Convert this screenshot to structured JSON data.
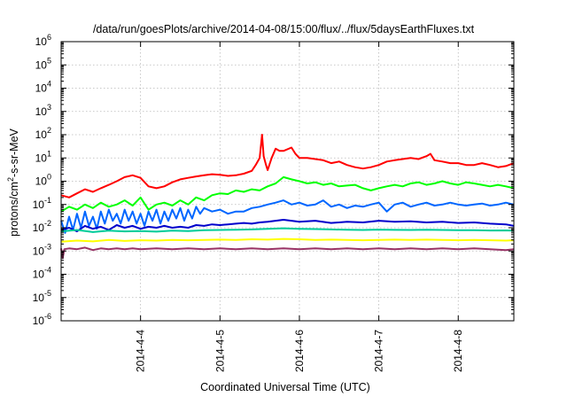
{
  "chart_data": {
    "type": "line",
    "title": "/data/run/goesPlots/archive/2014-04-08/15:00/flux/../flux/5daysEarthFluxes.txt",
    "xlabel": "Coordinated Universal Time (UTC)",
    "ylabel": "protons/cm²-s-sr-MeV",
    "ylabel_base": "protons/cm",
    "ylabel_sup": "2",
    "ylabel_rest": "-s-sr-MeV",
    "yscale": "log",
    "ylim_exp": [
      -6,
      6
    ],
    "y_tick_base": "10",
    "y_tick_exponents": [
      "6",
      "5",
      "4",
      "3",
      "2",
      "1",
      "0",
      "-1",
      "-2",
      "-3",
      "-4",
      "-5",
      "-6"
    ],
    "xlim_days": [
      3.0,
      8.7
    ],
    "x_tick_days": [
      4,
      5,
      6,
      7,
      8
    ],
    "x_tick_labels": [
      "2014-4-4",
      "2014-4-5",
      "2014-4-6",
      "2014-4-7",
      "2014-4-8"
    ],
    "grid": true,
    "series": [
      {
        "color": "#ff0000",
        "x": [
          3.0,
          3.1,
          3.2,
          3.3,
          3.4,
          3.5,
          3.6,
          3.7,
          3.8,
          3.9,
          4.0,
          4.1,
          4.2,
          4.3,
          4.4,
          4.5,
          4.6,
          4.7,
          4.8,
          4.9,
          5.0,
          5.1,
          5.2,
          5.3,
          5.4,
          5.45,
          5.5,
          5.53,
          5.55,
          5.58,
          5.6,
          5.65,
          5.7,
          5.75,
          5.8,
          5.9,
          5.95,
          6.0,
          6.1,
          6.2,
          6.3,
          6.4,
          6.5,
          6.6,
          6.7,
          6.8,
          6.9,
          7.0,
          7.1,
          7.2,
          7.3,
          7.4,
          7.5,
          7.6,
          7.65,
          7.7,
          7.8,
          7.9,
          8.0,
          8.1,
          8.2,
          8.3,
          8.4,
          8.5,
          8.6,
          8.7
        ],
        "y": [
          0.25,
          0.2,
          0.3,
          0.45,
          0.35,
          0.5,
          0.7,
          1.0,
          1.5,
          1.8,
          1.4,
          0.6,
          0.5,
          0.6,
          0.9,
          1.2,
          1.4,
          1.6,
          1.8,
          2.0,
          1.9,
          1.7,
          1.8,
          2.1,
          2.8,
          5,
          10,
          100,
          12,
          5,
          3,
          10,
          25,
          20,
          20,
          28,
          15,
          10,
          10,
          9,
          8,
          6,
          7,
          5,
          4,
          3.5,
          4,
          5,
          7,
          8,
          9,
          10,
          9,
          12,
          15,
          8,
          7,
          6,
          6,
          5,
          5,
          6,
          5,
          4,
          4.5,
          6
        ]
      },
      {
        "color": "#00ff00",
        "x": [
          3.0,
          3.1,
          3.2,
          3.3,
          3.4,
          3.5,
          3.6,
          3.7,
          3.8,
          3.9,
          4.0,
          4.1,
          4.2,
          4.3,
          4.4,
          4.5,
          4.6,
          4.7,
          4.8,
          4.9,
          5.0,
          5.1,
          5.2,
          5.3,
          5.4,
          5.5,
          5.6,
          5.7,
          5.8,
          5.9,
          6.0,
          6.1,
          6.2,
          6.3,
          6.4,
          6.5,
          6.6,
          6.7,
          6.8,
          6.9,
          7.0,
          7.1,
          7.2,
          7.3,
          7.4,
          7.5,
          7.6,
          7.7,
          7.8,
          7.9,
          8.0,
          8.1,
          8.2,
          8.3,
          8.4,
          8.5,
          8.6,
          8.7
        ],
        "y": [
          0.05,
          0.08,
          0.06,
          0.1,
          0.07,
          0.12,
          0.08,
          0.1,
          0.15,
          0.09,
          0.2,
          0.06,
          0.1,
          0.12,
          0.09,
          0.15,
          0.1,
          0.2,
          0.15,
          0.25,
          0.3,
          0.28,
          0.4,
          0.35,
          0.45,
          0.4,
          0.6,
          0.8,
          1.5,
          1.2,
          1.0,
          0.8,
          0.9,
          0.7,
          0.8,
          0.6,
          0.65,
          0.7,
          0.5,
          0.4,
          0.5,
          0.6,
          0.7,
          0.6,
          0.8,
          0.9,
          0.7,
          0.8,
          1.0,
          0.8,
          0.7,
          0.9,
          0.8,
          0.7,
          0.6,
          0.7,
          0.6,
          0.5
        ]
      },
      {
        "color": "#0066ff",
        "x": [
          3.0,
          3.05,
          3.1,
          3.15,
          3.2,
          3.25,
          3.3,
          3.35,
          3.4,
          3.45,
          3.5,
          3.55,
          3.6,
          3.65,
          3.7,
          3.75,
          3.8,
          3.85,
          3.9,
          3.95,
          4.0,
          4.05,
          4.1,
          4.15,
          4.2,
          4.25,
          4.3,
          4.35,
          4.4,
          4.45,
          4.5,
          4.55,
          4.6,
          4.65,
          4.7,
          4.75,
          4.8,
          4.9,
          5.0,
          5.1,
          5.2,
          5.3,
          5.4,
          5.5,
          5.6,
          5.7,
          5.8,
          5.9,
          6.0,
          6.1,
          6.2,
          6.3,
          6.4,
          6.5,
          6.6,
          6.7,
          6.8,
          6.9,
          7.0,
          7.1,
          7.2,
          7.3,
          7.4,
          7.5,
          7.6,
          7.7,
          7.8,
          7.9,
          8.0,
          8.1,
          8.2,
          8.3,
          8.4,
          8.5,
          8.6,
          8.7
        ],
        "y": [
          0.02,
          0.006,
          0.03,
          0.008,
          0.04,
          0.01,
          0.05,
          0.012,
          0.03,
          0.009,
          0.05,
          0.015,
          0.06,
          0.02,
          0.04,
          0.015,
          0.06,
          0.02,
          0.05,
          0.015,
          0.04,
          0.012,
          0.05,
          0.02,
          0.06,
          0.015,
          0.05,
          0.02,
          0.06,
          0.025,
          0.07,
          0.02,
          0.06,
          0.025,
          0.08,
          0.04,
          0.07,
          0.05,
          0.06,
          0.04,
          0.05,
          0.05,
          0.07,
          0.08,
          0.1,
          0.12,
          0.15,
          0.1,
          0.12,
          0.09,
          0.1,
          0.15,
          0.08,
          0.1,
          0.07,
          0.09,
          0.08,
          0.1,
          0.12,
          0.05,
          0.1,
          0.12,
          0.08,
          0.1,
          0.12,
          0.09,
          0.1,
          0.12,
          0.1,
          0.09,
          0.1,
          0.11,
          0.09,
          0.1,
          0.12,
          0.1
        ]
      },
      {
        "color": "#0000cc",
        "x": [
          3.0,
          3.1,
          3.2,
          3.3,
          3.4,
          3.5,
          3.6,
          3.7,
          3.8,
          3.9,
          4.0,
          4.1,
          4.2,
          4.3,
          4.4,
          4.5,
          4.6,
          4.7,
          4.8,
          4.9,
          5.0,
          5.1,
          5.2,
          5.3,
          5.4,
          5.5,
          5.6,
          5.7,
          5.8,
          5.9,
          6.0,
          6.2,
          6.4,
          6.6,
          6.8,
          7.0,
          7.2,
          7.4,
          7.6,
          7.8,
          8.0,
          8.2,
          8.4,
          8.6,
          8.7
        ],
        "y": [
          0.008,
          0.01,
          0.007,
          0.012,
          0.009,
          0.011,
          0.008,
          0.013,
          0.01,
          0.012,
          0.009,
          0.011,
          0.01,
          0.012,
          0.01,
          0.011,
          0.01,
          0.013,
          0.012,
          0.014,
          0.013,
          0.014,
          0.015,
          0.016,
          0.015,
          0.017,
          0.018,
          0.02,
          0.022,
          0.02,
          0.018,
          0.02,
          0.016,
          0.018,
          0.017,
          0.02,
          0.018,
          0.019,
          0.017,
          0.018,
          0.016,
          0.017,
          0.015,
          0.014,
          0.012
        ]
      },
      {
        "color": "#00cc99",
        "x": [
          3.0,
          3.2,
          3.4,
          3.6,
          3.8,
          4.0,
          4.2,
          4.4,
          4.6,
          4.8,
          5.0,
          5.2,
          5.4,
          5.6,
          5.8,
          6.0,
          6.2,
          6.4,
          6.6,
          6.8,
          7.0,
          7.2,
          7.4,
          7.6,
          7.8,
          8.0,
          8.2,
          8.4,
          8.6,
          8.7
        ],
        "y": [
          0.007,
          0.008,
          0.0065,
          0.0075,
          0.007,
          0.0072,
          0.0068,
          0.0075,
          0.0072,
          0.0078,
          0.008,
          0.0082,
          0.0085,
          0.009,
          0.0095,
          0.009,
          0.0088,
          0.0085,
          0.0082,
          0.008,
          0.0083,
          0.0081,
          0.008,
          0.0082,
          0.008,
          0.0078,
          0.0079,
          0.0076,
          0.0077,
          0.0075
        ]
      },
      {
        "color": "#ffff00",
        "x": [
          3.0,
          3.2,
          3.4,
          3.6,
          3.8,
          4.0,
          4.2,
          4.4,
          4.6,
          4.8,
          5.0,
          5.2,
          5.4,
          5.6,
          5.8,
          6.0,
          6.2,
          6.4,
          6.6,
          6.8,
          7.0,
          7.2,
          7.4,
          7.6,
          7.8,
          8.0,
          8.2,
          8.4,
          8.6,
          8.7
        ],
        "y": [
          0.0025,
          0.0028,
          0.0026,
          0.003,
          0.0027,
          0.0029,
          0.0028,
          0.003,
          0.0029,
          0.003,
          0.0031,
          0.003,
          0.0032,
          0.0031,
          0.0033,
          0.0032,
          0.003,
          0.0031,
          0.003,
          0.0029,
          0.003,
          0.0031,
          0.003,
          0.0031,
          0.003,
          0.0029,
          0.003,
          0.0029,
          0.0028,
          0.0029
        ]
      },
      {
        "color": "#993366",
        "x": [
          3.0,
          3.02,
          3.04,
          3.1,
          3.2,
          3.3,
          3.4,
          3.5,
          3.6,
          3.7,
          3.8,
          3.9,
          4.0,
          4.2,
          4.4,
          4.6,
          4.8,
          5.0,
          5.2,
          5.4,
          5.6,
          5.8,
          6.0,
          6.2,
          6.4,
          6.6,
          6.8,
          7.0,
          7.2,
          7.4,
          7.6,
          7.8,
          8.0,
          8.2,
          8.4,
          8.6,
          8.7
        ],
        "y": [
          0.0013,
          0.0005,
          0.0012,
          0.0013,
          0.0012,
          0.0014,
          0.0011,
          0.0013,
          0.0012,
          0.0013,
          0.0012,
          0.0013,
          0.0012,
          0.0013,
          0.0012,
          0.0013,
          0.0012,
          0.0013,
          0.0012,
          0.0013,
          0.0012,
          0.0013,
          0.0012,
          0.0013,
          0.0012,
          0.0013,
          0.0012,
          0.0013,
          0.0012,
          0.0013,
          0.0012,
          0.0013,
          0.0012,
          0.0013,
          0.0012,
          0.0011,
          0.0012
        ]
      }
    ]
  }
}
